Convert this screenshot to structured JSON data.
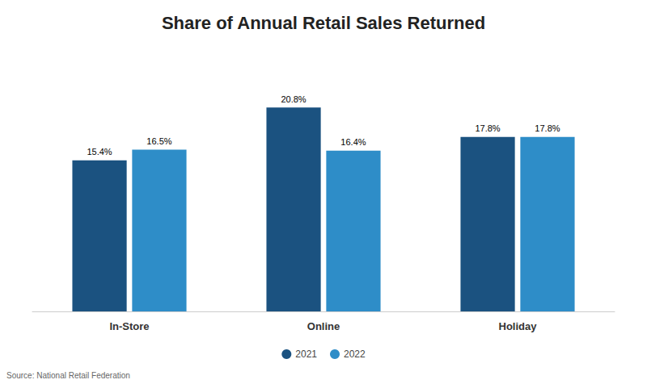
{
  "chart_data": {
    "type": "bar",
    "title": "Share of Annual Retail Sales Returned",
    "categories": [
      "In-Store",
      "Online",
      "Holiday"
    ],
    "series": [
      {
        "name": "2021",
        "color": "#1b5280",
        "values": [
          15.4,
          20.8,
          17.8
        ],
        "value_labels": [
          "15.4%",
          "20.8%",
          "17.8%"
        ]
      },
      {
        "name": "2022",
        "color": "#2e8dc8",
        "values": [
          16.5,
          16.4,
          17.8
        ],
        "value_labels": [
          "16.5%",
          "16.4%",
          "17.8%"
        ]
      }
    ],
    "ylim": [
      0,
      26
    ],
    "grid": false,
    "legend": "bottom",
    "data_labels": true,
    "tick_labels": "x",
    "annotations": [
      "Source: National Retail Federation"
    ]
  }
}
